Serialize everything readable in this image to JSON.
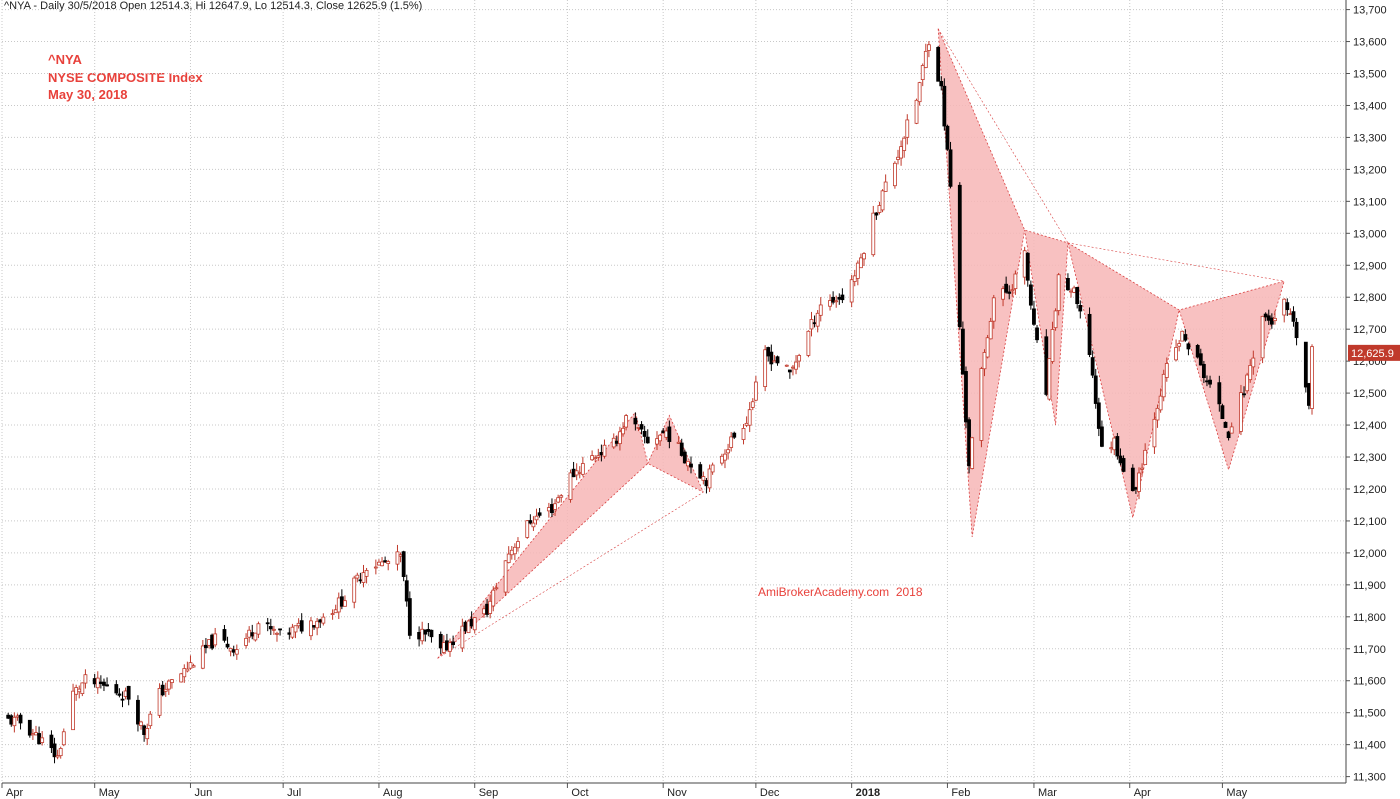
{
  "header": "^NYA - Daily 30/5/2018 Open 12514.3, Hi 12647.9, Lo 12514.3, Close 12625.9 (1.5%)",
  "info": {
    "symbol": "^NYA",
    "name": "NYSE COMPOSITE Index",
    "date": "May 30, 2018"
  },
  "watermark": "AmiBrokerAcademy.com  2018",
  "colors": {
    "up_candle": "#c0392b",
    "down_candle": "#000000",
    "pattern_fill": "#f7b6b6",
    "pattern_line": "#d84040",
    "grid": "#c8c8c8",
    "text_red": "#e8413b"
  },
  "chart_data": {
    "type": "candlestick",
    "title": "",
    "xlabel": "",
    "ylabel": "",
    "ylim": [
      11280,
      13730
    ],
    "yticks": [
      11300,
      11400,
      11500,
      11600,
      11700,
      11800,
      11900,
      12000,
      12100,
      12200,
      12300,
      12400,
      12500,
      12600,
      12700,
      12800,
      12900,
      13000,
      13100,
      13200,
      13300,
      13400,
      13500,
      13600,
      13700
    ],
    "ytick_labels": [
      "11,300",
      "11,400",
      "11,500",
      "11,600",
      "11,700",
      "11,800",
      "11,900",
      "12,000",
      "12,100",
      "12,200",
      "12,300",
      "12,400",
      "12,500",
      "12,600",
      "12,700",
      "12,800",
      "12,900",
      "13,000",
      "13,100",
      "13,200",
      "13,300",
      "13,400",
      "13,500",
      "13,600",
      "13,700"
    ],
    "xlim": [
      "2017-04-01",
      "2018-06-10"
    ],
    "x_ticks": [
      {
        "date": "2017-04-01",
        "label": "Apr",
        "bold": false
      },
      {
        "date": "2017-05-01",
        "label": "May",
        "bold": false
      },
      {
        "date": "2017-06-01",
        "label": "Jun",
        "bold": false
      },
      {
        "date": "2017-07-01",
        "label": "Jul",
        "bold": false
      },
      {
        "date": "2017-08-01",
        "label": "Aug",
        "bold": false
      },
      {
        "date": "2017-09-01",
        "label": "Sep",
        "bold": false
      },
      {
        "date": "2017-10-01",
        "label": "Oct",
        "bold": false
      },
      {
        "date": "2017-11-01",
        "label": "Nov",
        "bold": false
      },
      {
        "date": "2017-12-01",
        "label": "Dec",
        "bold": false
      },
      {
        "date": "2018-01-01",
        "label": "2018",
        "bold": true
      },
      {
        "date": "2018-02-01",
        "label": "Feb",
        "bold": false
      },
      {
        "date": "2018-03-01",
        "label": "Mar",
        "bold": false
      },
      {
        "date": "2018-04-01",
        "label": "Apr",
        "bold": false
      },
      {
        "date": "2018-05-01",
        "label": "May",
        "bold": false
      }
    ],
    "last_close": 12625.9,
    "last_close_label": "12,625.9",
    "price_path": [
      [
        "2017-04-01",
        11480
      ],
      [
        "2017-04-07",
        11470
      ],
      [
        "2017-04-13",
        11420
      ],
      [
        "2017-04-19",
        11360
      ],
      [
        "2017-04-24",
        11560
      ],
      [
        "2017-04-28",
        11600
      ],
      [
        "2017-05-05",
        11580
      ],
      [
        "2017-05-12",
        11550
      ],
      [
        "2017-05-17",
        11440
      ],
      [
        "2017-05-22",
        11560
      ],
      [
        "2017-05-31",
        11640
      ],
      [
        "2017-06-09",
        11730
      ],
      [
        "2017-06-16",
        11700
      ],
      [
        "2017-06-23",
        11780
      ],
      [
        "2017-06-30",
        11740
      ],
      [
        "2017-07-07",
        11770
      ],
      [
        "2017-07-14",
        11800
      ],
      [
        "2017-07-21",
        11860
      ],
      [
        "2017-07-28",
        11960
      ],
      [
        "2017-08-04",
        11970
      ],
      [
        "2017-08-08",
        11990
      ],
      [
        "2017-08-11",
        11760
      ],
      [
        "2017-08-17",
        11740
      ],
      [
        "2017-08-21",
        11690
      ],
      [
        "2017-08-28",
        11760
      ],
      [
        "2017-09-05",
        11820
      ],
      [
        "2017-09-12",
        12000
      ],
      [
        "2017-09-19",
        12100
      ],
      [
        "2017-09-26",
        12140
      ],
      [
        "2017-10-02",
        12240
      ],
      [
        "2017-10-09",
        12300
      ],
      [
        "2017-10-16",
        12340
      ],
      [
        "2017-10-20",
        12420
      ],
      [
        "2017-10-27",
        12350
      ],
      [
        "2017-11-02",
        12380
      ],
      [
        "2017-11-08",
        12300
      ],
      [
        "2017-11-15",
        12230
      ],
      [
        "2017-11-20",
        12310
      ],
      [
        "2017-11-28",
        12420
      ],
      [
        "2017-11-30",
        12480
      ],
      [
        "2017-12-04",
        12620
      ],
      [
        "2017-12-08",
        12600
      ],
      [
        "2017-12-12",
        12560
      ],
      [
        "2017-12-18",
        12690
      ],
      [
        "2017-12-22",
        12780
      ],
      [
        "2017-12-29",
        12800
      ],
      [
        "2018-01-03",
        12890
      ],
      [
        "2018-01-08",
        13050
      ],
      [
        "2018-01-12",
        13150
      ],
      [
        "2018-01-16",
        13250
      ],
      [
        "2018-01-22",
        13420
      ],
      [
        "2018-01-26",
        13610
      ],
      [
        "2018-01-30",
        13450
      ],
      [
        "2018-02-02",
        13150
      ],
      [
        "2018-02-05",
        12700
      ],
      [
        "2018-02-08",
        12280
      ],
      [
        "2018-02-12",
        12560
      ],
      [
        "2018-02-16",
        12800
      ],
      [
        "2018-02-21",
        12820
      ],
      [
        "2018-02-26",
        12930
      ],
      [
        "2018-03-01",
        12700
      ],
      [
        "2018-03-05",
        12500
      ],
      [
        "2018-03-09",
        12860
      ],
      [
        "2018-03-14",
        12810
      ],
      [
        "2018-03-19",
        12630
      ],
      [
        "2018-03-23",
        12320
      ],
      [
        "2018-03-27",
        12350
      ],
      [
        "2018-04-02",
        12180
      ],
      [
        "2018-04-06",
        12320
      ],
      [
        "2018-04-13",
        12580
      ],
      [
        "2018-04-18",
        12680
      ],
      [
        "2018-04-23",
        12600
      ],
      [
        "2018-04-27",
        12520
      ],
      [
        "2018-05-03",
        12380
      ],
      [
        "2018-05-08",
        12510
      ],
      [
        "2018-05-14",
        12740
      ],
      [
        "2018-05-18",
        12720
      ],
      [
        "2018-05-21",
        12780
      ],
      [
        "2018-05-25",
        12680
      ],
      [
        "2018-05-29",
        12460
      ],
      [
        "2018-05-30",
        12625.9
      ]
    ],
    "harmonic_patterns": [
      {
        "points": [
          [
            "2017-08-20",
            11670
          ],
          [
            "2017-10-23",
            12440
          ],
          [
            "2017-10-27",
            12280
          ],
          [
            "2017-11-03",
            12430
          ],
          [
            "2017-11-14",
            12190
          ]
        ]
      },
      {
        "points": [
          [
            "2018-01-29",
            13640
          ],
          [
            "2018-02-09",
            12050
          ],
          [
            "2018-02-26",
            13010
          ],
          [
            "2018-03-08",
            12400
          ],
          [
            "2018-03-12",
            12970
          ]
        ]
      },
      {
        "points": [
          [
            "2018-03-12",
            12970
          ],
          [
            "2018-04-02",
            12110
          ],
          [
            "2018-04-17",
            12760
          ],
          [
            "2018-05-03",
            12260
          ],
          [
            "2018-05-21",
            12850
          ]
        ]
      }
    ]
  }
}
